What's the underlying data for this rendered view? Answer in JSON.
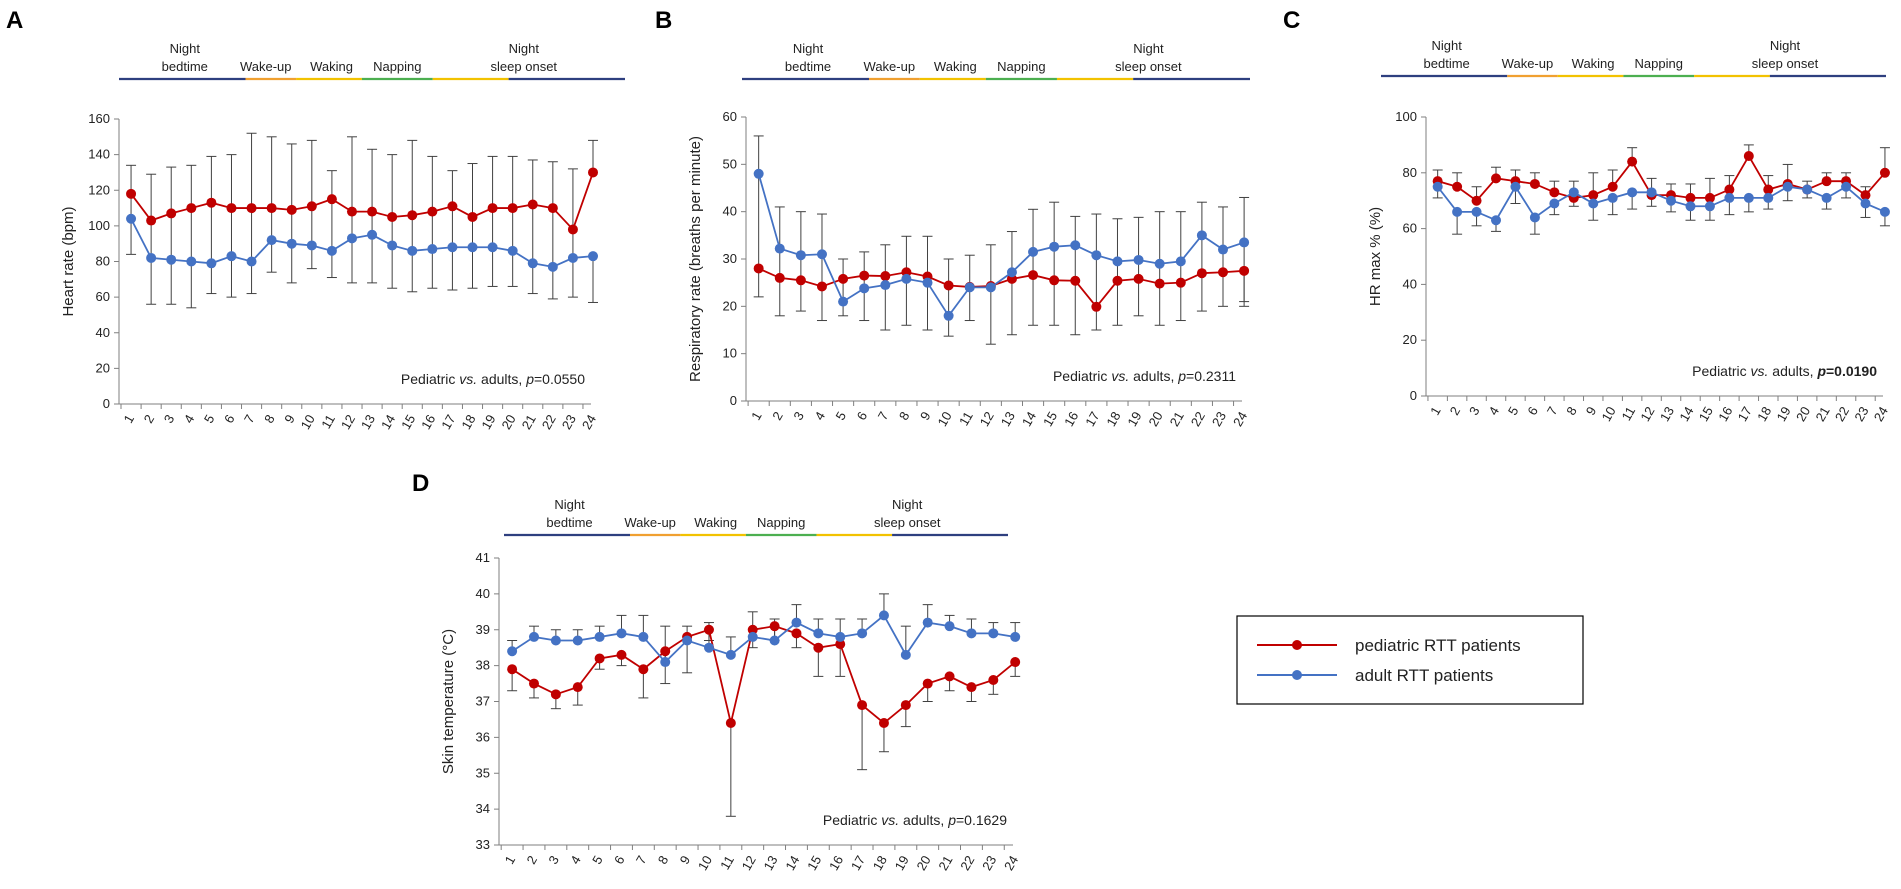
{
  "legend": {
    "pediatric": "pediatric RTT patients",
    "adult": "adult RTT patients"
  },
  "colors": {
    "pediatric": "#C00000",
    "adult": "#4472C4",
    "axis": "#7f7f7f",
    "errbar": "#404040"
  },
  "periods": {
    "labels": [
      "Night bedtime",
      "Wake-up",
      "Waking",
      "Napping",
      "Night sleep onset"
    ],
    "line1": [
      "Night",
      "",
      "",
      "",
      "Night"
    ],
    "line2": [
      "bedtime",
      "Wake-up",
      "Waking",
      "Napping",
      "sleep onset"
    ]
  },
  "hours": [
    "1",
    "2",
    "3",
    "4",
    "5",
    "6",
    "7",
    "8",
    "9",
    "10",
    "11",
    "12",
    "13",
    "14",
    "15",
    "16",
    "17",
    "18",
    "19",
    "20",
    "21",
    "22",
    "23",
    "24"
  ],
  "chart_data": [
    {
      "panel": "A",
      "type": "line",
      "title": "",
      "xlabel": "",
      "ylabel": "Heart rate (bpm)",
      "ylim": [
        0,
        160
      ],
      "yticks": [
        0,
        20,
        40,
        60,
        80,
        100,
        120,
        140,
        160
      ],
      "categories": [
        "1",
        "2",
        "3",
        "4",
        "5",
        "6",
        "7",
        "8",
        "9",
        "10",
        "11",
        "12",
        "13",
        "14",
        "15",
        "16",
        "17",
        "18",
        "19",
        "20",
        "21",
        "22",
        "23",
        "24"
      ],
      "series": [
        {
          "name": "pediatric RTT patients",
          "values": [
            118,
            103,
            107,
            110,
            113,
            110,
            110,
            110,
            109,
            111,
            115,
            108,
            108,
            105,
            106,
            108,
            111,
            105,
            110,
            110,
            112,
            110,
            98,
            130
          ],
          "err_high": [
            0,
            0,
            0,
            0,
            0,
            0,
            0,
            0,
            0,
            0,
            0,
            0,
            0,
            0,
            0,
            0,
            0,
            0,
            0,
            0,
            0,
            0,
            0,
            148
          ]
        },
        {
          "name": "adult RTT patients",
          "values": [
            104,
            82,
            81,
            80,
            79,
            83,
            80,
            92,
            90,
            89,
            86,
            93,
            95,
            89,
            86,
            87,
            88,
            88,
            88,
            86,
            79,
            77,
            82,
            83
          ],
          "err_low": [
            84,
            56,
            56,
            54,
            62,
            60,
            62,
            74,
            68,
            76,
            71,
            68,
            68,
            65,
            63,
            65,
            64,
            65,
            66,
            66,
            62,
            59,
            60,
            57
          ],
          "err_high": [
            134,
            129,
            133,
            134,
            139,
            140,
            152,
            150,
            146,
            148,
            131,
            150,
            143,
            140,
            148,
            139,
            131,
            135,
            139,
            139,
            137,
            136,
            132,
            0
          ]
        }
      ],
      "annotation": {
        "prefix": "Pediatric ",
        "italic": "vs.",
        "middle": " adults, ",
        "p": "p",
        "value": "=0.0550",
        "bold": false
      }
    },
    {
      "panel": "B",
      "type": "line",
      "title": "",
      "xlabel": "",
      "ylabel": "Respiratory  rate (breaths per minute)",
      "ylim": [
        0,
        60
      ],
      "yticks": [
        0,
        10,
        20,
        30,
        40,
        50,
        60
      ],
      "categories": [
        "1",
        "2",
        "3",
        "4",
        "5",
        "6",
        "7",
        "8",
        "9",
        "10",
        "11",
        "12",
        "13",
        "14",
        "15",
        "16",
        "17",
        "18",
        "19",
        "20",
        "21",
        "22",
        "23",
        "24"
      ],
      "series": [
        {
          "name": "pediatric RTT patients",
          "values": [
            28,
            26,
            25.5,
            24.2,
            25.8,
            26.5,
            26.4,
            27.2,
            26.3,
            24.4,
            24.1,
            24.3,
            25.8,
            26.6,
            25.5,
            25.4,
            19.9,
            25.4,
            25.8,
            24.8,
            25,
            27,
            27.2,
            27.5
          ],
          "err_low": [
            0,
            0,
            0,
            0,
            0,
            0,
            0,
            0,
            0,
            0,
            0,
            0,
            0,
            0,
            0,
            0,
            0,
            0,
            0,
            0,
            0,
            0,
            0,
            21
          ],
          "err_high": [
            0,
            0,
            0,
            0,
            0,
            0,
            0,
            0,
            0,
            0,
            0,
            0,
            0,
            0,
            0,
            0,
            0,
            0,
            0,
            0,
            0,
            0,
            0,
            0
          ]
        },
        {
          "name": "adult RTT patients",
          "values": [
            48,
            32.2,
            30.8,
            31,
            21,
            23.8,
            24.5,
            25.8,
            25,
            18,
            24,
            24,
            27.2,
            31.5,
            32.6,
            32.9,
            30.8,
            29.5,
            29.8,
            29,
            29.5,
            35,
            32,
            33.5
          ],
          "err_low": [
            22,
            18,
            19,
            17,
            18,
            17,
            15,
            16,
            15,
            13.7,
            17,
            12,
            14,
            16,
            16,
            14,
            15,
            16,
            18,
            16,
            17,
            19,
            20,
            20
          ],
          "err_high": [
            56,
            41,
            40,
            39.5,
            30,
            31.5,
            33,
            34.8,
            34.8,
            30,
            30.8,
            33,
            35.8,
            40.5,
            42,
            39,
            39.5,
            38.5,
            38.8,
            40,
            40,
            42,
            41,
            43
          ]
        }
      ],
      "annotation": {
        "prefix": "Pediatric ",
        "italic": "vs.",
        "middle": " adults, ",
        "p": "p",
        "value": "=0.2311",
        "bold": false
      }
    },
    {
      "panel": "C",
      "type": "line",
      "title": "",
      "xlabel": "",
      "ylabel": "HR max % (%)",
      "ylim": [
        0,
        100
      ],
      "yticks": [
        0,
        20,
        40,
        60,
        80,
        100
      ],
      "categories": [
        "1",
        "2",
        "3",
        "4",
        "5",
        "6",
        "7",
        "8",
        "9",
        "10",
        "11",
        "12",
        "13",
        "14",
        "15",
        "16",
        "17",
        "18",
        "19",
        "20",
        "21",
        "22",
        "23",
        "24"
      ],
      "series": [
        {
          "name": "pediatric RTT patients",
          "values": [
            77,
            75,
            70,
            78,
            77,
            76,
            73,
            71,
            72,
            75,
            84,
            72,
            72,
            71,
            71,
            74,
            86,
            74,
            76,
            74,
            77,
            77,
            72,
            80
          ],
          "err_low": [
            0,
            0,
            0,
            0,
            0,
            0,
            0,
            0,
            0,
            0,
            0,
            0,
            0,
            0,
            0,
            0,
            0,
            0,
            0,
            0,
            0,
            0,
            0,
            0
          ],
          "err_high": [
            81,
            80,
            75,
            82,
            81,
            80,
            77,
            77,
            80,
            81,
            89,
            78,
            76,
            76,
            78,
            79,
            90,
            79,
            83,
            77,
            80,
            80,
            75,
            89
          ]
        },
        {
          "name": "adult RTT patients",
          "values": [
            75,
            66,
            66,
            63,
            75,
            64,
            69,
            73,
            69,
            71,
            73,
            73,
            70,
            68,
            68,
            71,
            71,
            71,
            75,
            74,
            71,
            75,
            69,
            66
          ],
          "err_low": [
            71,
            58,
            61,
            59,
            69,
            58,
            65,
            68,
            63,
            65,
            67,
            68,
            66,
            63,
            63,
            65,
            66,
            67,
            70,
            71,
            67,
            71,
            64,
            61
          ],
          "err_high": [
            0,
            0,
            0,
            0,
            0,
            0,
            0,
            0,
            0,
            0,
            0,
            0,
            0,
            0,
            0,
            0,
            0,
            0,
            0,
            0,
            0,
            0,
            0,
            0
          ]
        }
      ],
      "annotation": {
        "prefix": "Pediatric ",
        "italic": "vs.",
        "middle": " adults, ",
        "p": "p",
        "value": "=0.0190",
        "bold": true
      }
    },
    {
      "panel": "D",
      "type": "line",
      "title": "",
      "xlabel": "",
      "ylabel": "Skin temperature (°C)",
      "ylim": [
        33,
        41
      ],
      "yticks": [
        33,
        34,
        35,
        36,
        37,
        38,
        39,
        40,
        41
      ],
      "categories": [
        "1",
        "2",
        "3",
        "4",
        "5",
        "6",
        "7",
        "8",
        "9",
        "10",
        "11",
        "12",
        "13",
        "14",
        "15",
        "16",
        "17",
        "18",
        "19",
        "20",
        "21",
        "22",
        "23",
        "24"
      ],
      "series": [
        {
          "name": "pediatric RTT patients",
          "values": [
            37.9,
            37.5,
            37.2,
            37.4,
            38.2,
            38.3,
            37.9,
            38.4,
            38.8,
            39,
            36.4,
            39,
            39.1,
            38.9,
            38.5,
            38.6,
            36.9,
            36.4,
            36.9,
            37.5,
            37.7,
            37.4,
            37.6,
            38.1
          ],
          "err_low": [
            37.3,
            37.1,
            36.8,
            36.9,
            37.9,
            38,
            37.1,
            37.5,
            37.8,
            38.7,
            33.8,
            38.5,
            38.7,
            38.5,
            37.7,
            37.7,
            35.1,
            35.6,
            36.3,
            37,
            37.3,
            37,
            37.2,
            37.7
          ],
          "err_high": [
            0,
            0,
            0,
            0,
            0,
            0,
            0,
            0,
            0,
            0,
            0,
            0,
            0,
            0,
            0,
            0,
            0,
            0,
            0,
            0,
            0,
            0,
            0,
            0
          ]
        },
        {
          "name": "adult RTT patients",
          "values": [
            38.4,
            38.8,
            38.7,
            38.7,
            38.8,
            38.9,
            38.8,
            38.1,
            38.7,
            38.5,
            38.3,
            38.8,
            38.7,
            39.2,
            38.9,
            38.8,
            38.9,
            39.4,
            38.3,
            39.2,
            39.1,
            38.9,
            38.9,
            38.8
          ],
          "err_low": [
            0,
            0,
            0,
            0,
            0,
            0,
            0,
            0,
            0,
            0,
            0,
            0,
            0,
            0,
            0,
            0,
            0,
            0,
            0,
            0,
            0,
            0,
            0,
            0
          ],
          "err_high": [
            38.7,
            39.1,
            39,
            39,
            39.1,
            39.4,
            39.4,
            39.1,
            39.1,
            39.2,
            38.8,
            39.5,
            39.3,
            39.7,
            39.3,
            39.3,
            39.3,
            40,
            39.1,
            39.7,
            39.4,
            39.3,
            39.2,
            39.2
          ]
        }
      ],
      "annotation": {
        "prefix": "Pediatric ",
        "italic": "vs.",
        "middle": " adults, ",
        "p": "p",
        "value": "=0.1629",
        "bold": false
      }
    }
  ]
}
